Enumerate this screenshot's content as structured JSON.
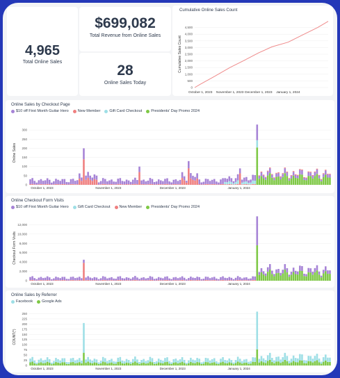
{
  "colors": {
    "purple": "#a683d6",
    "pink": "#ef7f7f",
    "teal": "#9edfe6",
    "green": "#7ec845",
    "line": "#ef8a8a"
  },
  "kpis": {
    "total_sales": {
      "value": "4,965",
      "label": "Total Online Sales"
    },
    "revenue": {
      "value": "$699,082",
      "label": "Total Revenue from Online Sales"
    },
    "today": {
      "value": "28",
      "label": "Online Sales Today"
    }
  },
  "cumulative": {
    "title": "Cumulative Online Sales Count",
    "ylabel": "Cumulative Sales Count"
  },
  "checkout": {
    "title": "Online Sales by Checkout Page",
    "ylabel": "Online Sales",
    "legend": [
      "$10 off First Month Guitar Hero",
      "New Member",
      "Gift Card Checkout",
      "Presidents' Day Promo 2024"
    ]
  },
  "visits": {
    "title": "Online Checkout Form Visits",
    "ylabel": "Checkout Form Visits",
    "legend": [
      "$10 off First Month Guitar Hero",
      "Gift Card Checkout",
      "New Member",
      "Presidents' Day Promo 2024"
    ]
  },
  "referrer": {
    "title": "Online Sales by Referrer",
    "ylabel": "COUNT(*)",
    "legend": [
      "Facebook",
      "Google Ads"
    ]
  },
  "chart_data": [
    {
      "type": "line",
      "title": "Cumulative Online Sales Count",
      "ylabel": "Cumulative Sales Count",
      "x": [
        "2023-09-25",
        "2023-10-01",
        "2023-10-15",
        "2023-11-01",
        "2023-11-15",
        "2023-12-01",
        "2023-12-15",
        "2024-01-01",
        "2024-01-15",
        "2024-02-01",
        "2024-02-12"
      ],
      "values": [
        0,
        250,
        800,
        1500,
        2000,
        2600,
        3050,
        3400,
        3900,
        4500,
        4965
      ],
      "ylim": [
        0,
        5000
      ],
      "yticks": [
        "0",
        "500",
        "1,000",
        "1,500",
        "2,000",
        "2,500",
        "3,000",
        "3,500",
        "4,000",
        "4,500"
      ],
      "xticks": [
        "October 1, 2023",
        "November 1, 2023",
        "December 1, 2023",
        "January 1, 2024"
      ]
    },
    {
      "type": "bar",
      "stacked": true,
      "title": "Online Sales by Checkout Page",
      "ylabel": "Online Sales",
      "ylim": [
        0,
        350
      ],
      "yticks": [
        "0",
        "50",
        "100",
        "150",
        "200",
        "250",
        "300"
      ],
      "xticks": [
        "October 1, 2023",
        "November 1, 2023",
        "December 1, 2023",
        "January 1, 2024"
      ],
      "series_names": [
        "$10 off First Month Guitar Hero",
        "New Member",
        "Gift Card Checkout",
        "Presidents' Day Promo 2024"
      ],
      "peaks": {
        "2023-10-20": 200,
        "2023-11-15": 100,
        "2023-12-08": 130,
        "2024-01-01": 90,
        "2024-01-09": 330
      }
    },
    {
      "type": "bar",
      "stacked": true,
      "title": "Online Checkout Form Visits",
      "ylabel": "Checkout Form Visits",
      "ylim": [
        0,
        14000
      ],
      "yticks": [
        "0",
        "2,000",
        "4,000",
        "6,000",
        "8,000",
        "10,000",
        "12,000"
      ],
      "xticks": [
        "October 1, 2023",
        "November 1, 2023",
        "December 1, 2023",
        "January 1, 2024"
      ],
      "series_names": [
        "$10 off First Month Guitar Hero",
        "Gift Card Checkout",
        "New Member",
        "Presidents' Day Promo 2024"
      ],
      "peaks": {
        "2023-10-20": 4500,
        "2024-01-09": 13800
      }
    },
    {
      "type": "bar",
      "stacked": true,
      "title": "Online Sales by Referrer",
      "ylabel": "COUNT(*)",
      "ylim": [
        0,
        275
      ],
      "yticks": [
        "0",
        "25",
        "50",
        "75",
        "100",
        "125",
        "150",
        "175",
        "200",
        "225",
        "250"
      ],
      "xticks": [
        "October 1, 2023",
        "November 1, 2023",
        "December 1, 2023",
        "January 1, 2024"
      ],
      "series_names": [
        "Facebook",
        "Google Ads"
      ],
      "peaks": {
        "2023-10-20": 205,
        "2024-01-09": 260
      }
    }
  ]
}
